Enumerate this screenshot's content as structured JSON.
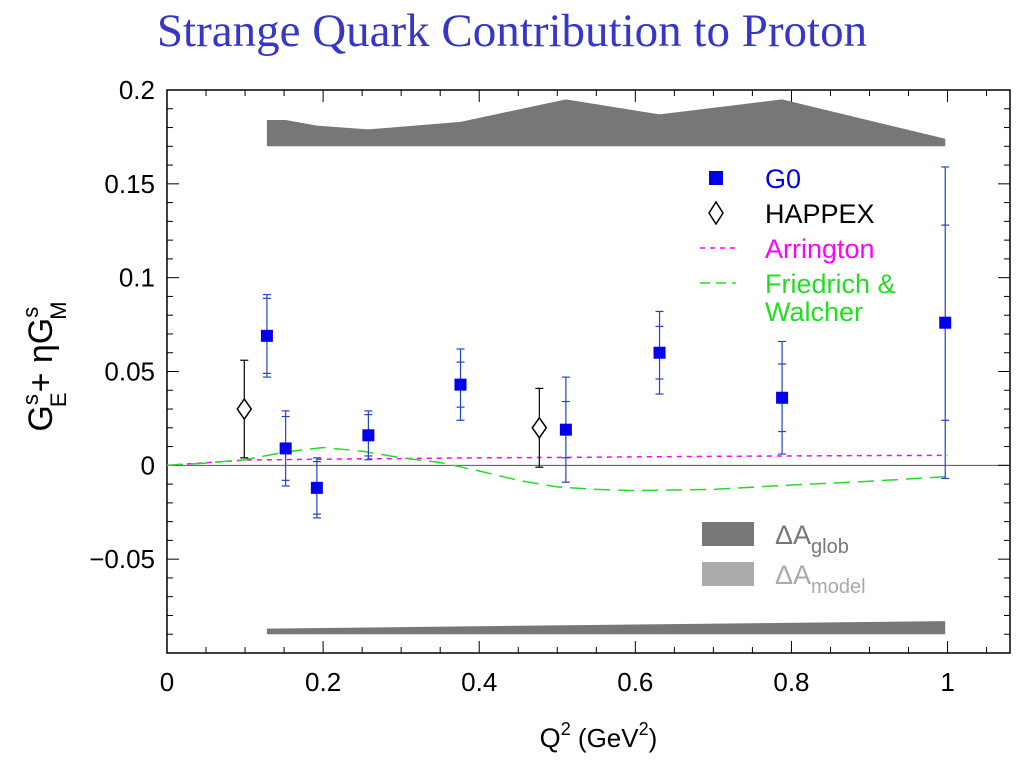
{
  "title": "Strange Quark Contribution to Proton",
  "chart_data": {
    "type": "scatter",
    "title": "Strange Quark Contribution to Proton",
    "xlabel": {
      "base": "Q",
      "sup": "2",
      "unit_open": " (GeV",
      "unit_sup": "2",
      "unit_close": ")"
    },
    "ylabel": {
      "g1": "G",
      "sup1": "s",
      "sub1": "E",
      "mid": "+ ηG",
      "sup2": "s",
      "sub2": "M"
    },
    "xlim": [
      0,
      1.08
    ],
    "ylim": [
      -0.1,
      0.2
    ],
    "x_ticks": [
      {
        "value": 0,
        "label": "0"
      },
      {
        "value": 0.2,
        "label": "0.2"
      },
      {
        "value": 0.4,
        "label": "0.4"
      },
      {
        "value": 0.6,
        "label": "0.6"
      },
      {
        "value": 0.8,
        "label": "0.8"
      },
      {
        "value": 1.0,
        "label": "1"
      }
    ],
    "y_ticks": [
      {
        "value": -0.05,
        "label": "−0.05"
      },
      {
        "value": 0,
        "label": "0"
      },
      {
        "value": 0.05,
        "label": "0.05"
      },
      {
        "value": 0.1,
        "label": "0.1"
      },
      {
        "value": 0.15,
        "label": "0.15"
      },
      {
        "value": 0.2,
        "label": "0.2"
      }
    ],
    "zero_line": true,
    "series": [
      {
        "name": "G0",
        "marker": "square",
        "color": "#0000ee",
        "points": [
          {
            "x": 0.128,
            "y": 0.069,
            "err_stat": 0.02,
            "err_tot": 0.022
          },
          {
            "x": 0.152,
            "y": 0.009,
            "err_stat": 0.017,
            "err_tot": 0.02
          },
          {
            "x": 0.192,
            "y": -0.012,
            "err_stat": 0.014,
            "err_tot": 0.016
          },
          {
            "x": 0.258,
            "y": 0.016,
            "err_stat": 0.011,
            "err_tot": 0.013
          },
          {
            "x": 0.376,
            "y": 0.043,
            "err_stat": 0.012,
            "err_tot": 0.019
          },
          {
            "x": 0.511,
            "y": 0.019,
            "err_stat": 0.015,
            "err_tot": 0.028
          },
          {
            "x": 0.631,
            "y": 0.06,
            "err_stat": 0.014,
            "err_tot": 0.022
          },
          {
            "x": 0.788,
            "y": 0.036,
            "err_stat": 0.018,
            "err_tot": 0.03
          },
          {
            "x": 0.997,
            "y": 0.076,
            "err_stat": 0.052,
            "err_tot": 0.083
          }
        ]
      },
      {
        "name": "HAPPEX",
        "marker": "diamond",
        "color": "#000000",
        "points": [
          {
            "x": 0.099,
            "y": 0.03,
            "err_tot": 0.026
          },
          {
            "x": 0.477,
            "y": 0.02,
            "err_tot": 0.021
          }
        ]
      },
      {
        "name": "Arrington",
        "style": "dotted",
        "color": "#ff00ff",
        "x": [
          0.0,
          0.1,
          0.2,
          0.3,
          0.4,
          0.5,
          0.6,
          0.7,
          0.8,
          0.9,
          1.0
        ],
        "y": [
          0.0,
          0.0028,
          0.0033,
          0.0036,
          0.004,
          0.0042,
          0.0045,
          0.0048,
          0.005,
          0.0052,
          0.0053
        ]
      },
      {
        "name": "Friedrich & Walcher",
        "style": "dashed",
        "color": "#22dd22",
        "x": [
          0.0,
          0.05,
          0.1,
          0.15,
          0.2,
          0.25,
          0.3,
          0.35,
          0.4,
          0.45,
          0.5,
          0.55,
          0.6,
          0.7,
          0.8,
          0.9,
          1.0
        ],
        "y": [
          0.0,
          0.0012,
          0.003,
          0.007,
          0.0095,
          0.0075,
          0.004,
          0.0015,
          -0.003,
          -0.008,
          -0.0115,
          -0.0128,
          -0.0135,
          -0.0128,
          -0.0105,
          -0.0085,
          -0.006
        ]
      }
    ],
    "error_bands": [
      {
        "name": "ΔA_glob",
        "color": "#777777",
        "baseline": 0.17,
        "x": [
          0.128,
          0.152,
          0.192,
          0.258,
          0.376,
          0.511,
          0.631,
          0.788,
          0.997
        ],
        "y": [
          0.184,
          0.184,
          0.181,
          0.179,
          0.183,
          0.195,
          0.187,
          0.195,
          0.174
        ]
      },
      {
        "name": "ΔA_model",
        "color": "#777777",
        "baseline": -0.09,
        "x": [
          0.128,
          0.997
        ],
        "y": [
          -0.087,
          -0.083
        ]
      }
    ],
    "legend": {
      "placement": "top-right",
      "entries": [
        {
          "label": "G0",
          "color": "#0000ee",
          "marker": "square"
        },
        {
          "label": "HAPPEX",
          "color": "#000000",
          "marker": "diamond"
        },
        {
          "label": "Arrington",
          "color": "#ff00ff",
          "line": "dotted"
        },
        {
          "label": "Friedrich &",
          "label2": "Walcher",
          "color": "#22dd22",
          "line": "dashed"
        }
      ]
    },
    "band_legend": {
      "placement": "bottom-right",
      "entries": [
        {
          "base": "ΔA",
          "sub": "glob",
          "color": "#777777",
          "text_color": "#777777"
        },
        {
          "base": "ΔA",
          "sub": "model",
          "color": "#aaaaaa",
          "text_color": "#aaaaaa"
        }
      ]
    }
  }
}
